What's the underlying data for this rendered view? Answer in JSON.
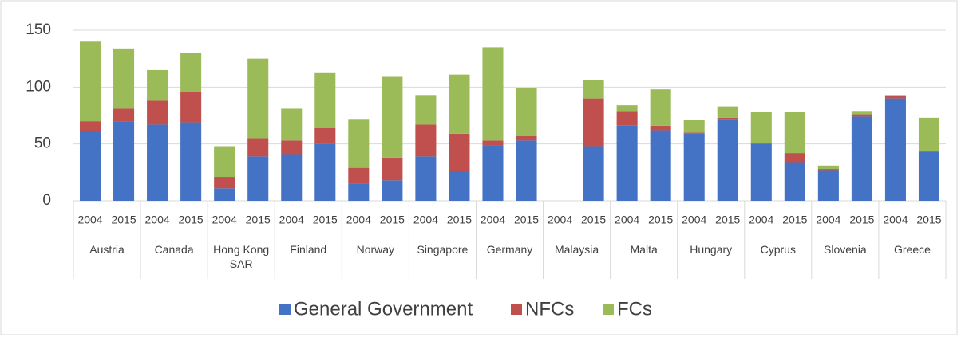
{
  "chart_data": {
    "type": "stacked_bar",
    "groups": [
      "Austria",
      "Canada",
      "Hong Kong SAR",
      "Finland",
      "Norway",
      "Singapore",
      "Germany",
      "Malaysia",
      "Malta",
      "Hungary",
      "Cyprus",
      "Slovenia",
      "Greece"
    ],
    "categories": [
      "2004",
      "2015",
      "2004",
      "2015",
      "2004",
      "2015",
      "2004",
      "2015",
      "2004",
      "2015",
      "2004",
      "2015",
      "2004",
      "2015",
      "2004",
      "2015",
      "2004",
      "2015",
      "2004",
      "2015",
      "2004",
      "2015",
      "2004",
      "2015",
      "2004",
      "2015"
    ],
    "series": [
      {
        "name": "General Government",
        "color": "#4472c4",
        "values": [
          61,
          70,
          67,
          69,
          11,
          39,
          41,
          50,
          15,
          18,
          39,
          26,
          49,
          53,
          null,
          48,
          66,
          62,
          59,
          72,
          50,
          34,
          27,
          74,
          90,
          43
        ]
      },
      {
        "name": "NFCs",
        "color": "#c0504d",
        "values": [
          9,
          11,
          21,
          27,
          10,
          16,
          12,
          14,
          14,
          20,
          28,
          33,
          4,
          4,
          null,
          42,
          13,
          4,
          1,
          1,
          1,
          8,
          1,
          2,
          2,
          1
        ]
      },
      {
        "name": "FCs",
        "color": "#9bbb59",
        "values": [
          70,
          53,
          27,
          34,
          27,
          70,
          28,
          49,
          43,
          71,
          26,
          52,
          82,
          42,
          null,
          16,
          5,
          32,
          11,
          10,
          27,
          36,
          3,
          3,
          1,
          29
        ]
      }
    ],
    "ylim": [
      0,
      150
    ],
    "yticks": [
      0,
      50,
      100,
      150
    ],
    "grid": true
  }
}
